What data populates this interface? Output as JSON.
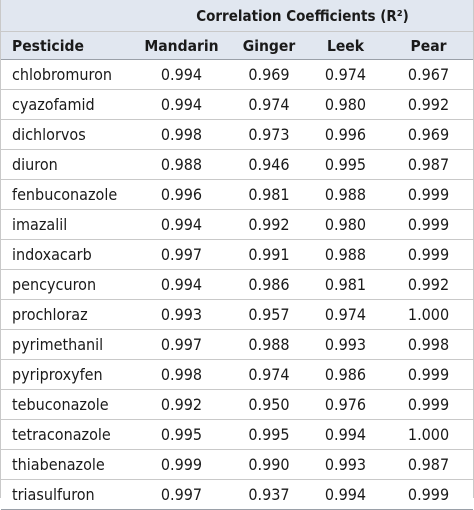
{
  "table": {
    "group_header": "Correlation Coefficients (R²)",
    "columns": [
      "Pesticide",
      "Mandarin",
      "Ginger",
      "Leek",
      "Pear"
    ],
    "rows": [
      {
        "pesticide": "chlobromuron",
        "values": [
          "0.994",
          "0.969",
          "0.974",
          "0.967"
        ]
      },
      {
        "pesticide": "cyazofamid",
        "values": [
          "0.994",
          "0.974",
          "0.980",
          "0.992"
        ]
      },
      {
        "pesticide": "dichlorvos",
        "values": [
          "0.998",
          "0.973",
          "0.996",
          "0.969"
        ]
      },
      {
        "pesticide": "diuron",
        "values": [
          "0.988",
          "0.946",
          "0.995",
          "0.987"
        ]
      },
      {
        "pesticide": "fenbuconazole",
        "values": [
          "0.996",
          "0.981",
          "0.988",
          "0.999"
        ]
      },
      {
        "pesticide": "imazalil",
        "values": [
          "0.994",
          "0.992",
          "0.980",
          "0.999"
        ]
      },
      {
        "pesticide": "indoxacarb",
        "values": [
          "0.997",
          "0.991",
          "0.988",
          "0.999"
        ]
      },
      {
        "pesticide": "pencycuron",
        "values": [
          "0.994",
          "0.986",
          "0.981",
          "0.992"
        ]
      },
      {
        "pesticide": "prochloraz",
        "values": [
          "0.993",
          "0.957",
          "0.974",
          "1.000"
        ]
      },
      {
        "pesticide": "pyrimethanil",
        "values": [
          "0.997",
          "0.988",
          "0.993",
          "0.998"
        ]
      },
      {
        "pesticide": "pyriproxyfen",
        "values": [
          "0.998",
          "0.974",
          "0.986",
          "0.999"
        ]
      },
      {
        "pesticide": "tebuconazole",
        "values": [
          "0.992",
          "0.950",
          "0.976",
          "0.999"
        ]
      },
      {
        "pesticide": "tetraconazole",
        "values": [
          "0.995",
          "0.995",
          "0.994",
          "1.000"
        ]
      },
      {
        "pesticide": "thiabenazole",
        "values": [
          "0.999",
          "0.990",
          "0.993",
          "0.987"
        ]
      },
      {
        "pesticide": "triasulfuron",
        "values": [
          "0.997",
          "0.937",
          "0.994",
          "0.999"
        ]
      }
    ]
  }
}
